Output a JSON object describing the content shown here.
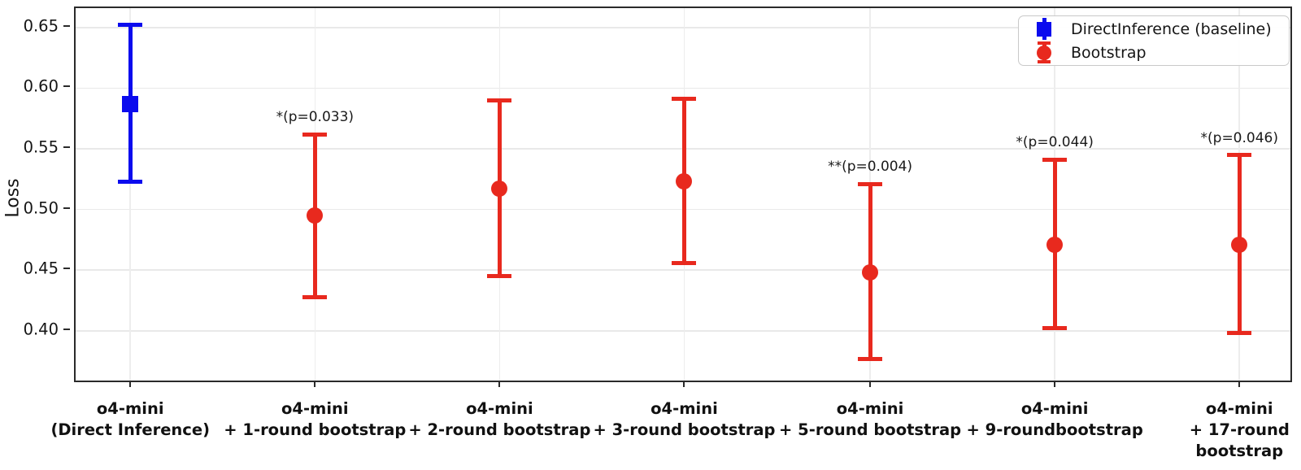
{
  "figure": {
    "ylabel": "Loss",
    "background_color": "#ffffff",
    "axis_color": "#2a2a2a",
    "grid_color": "#ebebeb"
  },
  "legend": {
    "position": "upper right",
    "items": [
      {
        "label": "DirectInference (baseline)",
        "color": "#0b0bee",
        "marker": "square"
      },
      {
        "label": "Bootstrap",
        "color": "#e8291e",
        "marker": "circle"
      }
    ]
  },
  "chart_data": {
    "type": "errorbar",
    "title": "",
    "xlabel": "",
    "ylabel": "Loss",
    "grid": true,
    "ylim": [
      0.359,
      0.666
    ],
    "yticks": [
      0.4,
      0.45,
      0.5,
      0.55,
      0.6,
      0.65
    ],
    "categories": [
      "o4-mini (Direct Inference)",
      "o4-mini + 1-round bootstrap",
      "o4-mini + 2-round bootstrap",
      "o4-mini + 3-round bootstrap",
      "o4-mini + 5-round bootstrap",
      "o4-mini + 9-roundbootstrap",
      "o4-mini + 17-round bootstrap"
    ],
    "points": [
      {
        "category_lines": [
          "o4-mini",
          "(Direct Inference)"
        ],
        "series": "DirectInference (baseline)",
        "marker": "square",
        "color": "#0b0bee",
        "mean": 0.587,
        "lo": 0.523,
        "hi": 0.652,
        "annotation": ""
      },
      {
        "category_lines": [
          "o4-mini",
          "+ 1-round bootstrap"
        ],
        "series": "Bootstrap",
        "marker": "circle",
        "color": "#e8291e",
        "mean": 0.495,
        "lo": 0.428,
        "hi": 0.562,
        "annotation": "*(p=0.033)"
      },
      {
        "category_lines": [
          "o4-mini",
          "+ 2-round bootstrap"
        ],
        "series": "Bootstrap",
        "marker": "circle",
        "color": "#e8291e",
        "mean": 0.517,
        "lo": 0.445,
        "hi": 0.59,
        "annotation": ""
      },
      {
        "category_lines": [
          "o4-mini",
          "+ 3-round bootstrap"
        ],
        "series": "Bootstrap",
        "marker": "circle",
        "color": "#e8291e",
        "mean": 0.523,
        "lo": 0.456,
        "hi": 0.591,
        "annotation": ""
      },
      {
        "category_lines": [
          "o4-mini",
          "+ 5-round bootstrap"
        ],
        "series": "Bootstrap",
        "marker": "circle",
        "color": "#e8291e",
        "mean": 0.448,
        "lo": 0.377,
        "hi": 0.521,
        "annotation": "**(p=0.004)"
      },
      {
        "category_lines": [
          "o4-mini",
          "+ 9-roundbootstrap"
        ],
        "series": "Bootstrap",
        "marker": "circle",
        "color": "#e8291e",
        "mean": 0.471,
        "lo": 0.402,
        "hi": 0.541,
        "annotation": "*(p=0.044)"
      },
      {
        "category_lines": [
          "o4-mini",
          "+ 17-round",
          "bootstrap"
        ],
        "series": "Bootstrap",
        "marker": "circle",
        "color": "#e8291e",
        "mean": 0.471,
        "lo": 0.398,
        "hi": 0.545,
        "annotation": "*(p=0.046)"
      }
    ]
  }
}
